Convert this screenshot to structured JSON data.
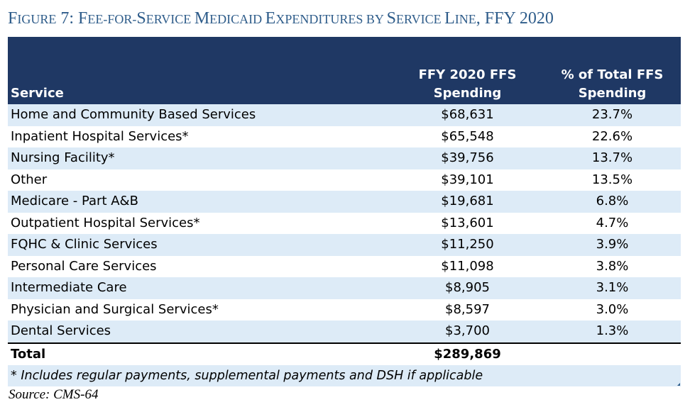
{
  "figure": {
    "title_parts": [
      {
        "text": "F",
        "style": "cap"
      },
      {
        "text": "igure",
        "style": "sc"
      },
      {
        "text": " 7: ",
        "style": "cap"
      },
      {
        "text": "F",
        "style": "cap"
      },
      {
        "text": "ee-for-",
        "style": "sc"
      },
      {
        "text": "S",
        "style": "cap"
      },
      {
        "text": "ervice ",
        "style": "sc"
      },
      {
        "text": "M",
        "style": "cap"
      },
      {
        "text": "edicaid ",
        "style": "sc"
      },
      {
        "text": "E",
        "style": "cap"
      },
      {
        "text": "xpenditures by ",
        "style": "sc"
      },
      {
        "text": "S",
        "style": "cap"
      },
      {
        "text": "ervice ",
        "style": "sc"
      },
      {
        "text": "L",
        "style": "cap"
      },
      {
        "text": "ine",
        "style": "sc"
      },
      {
        "text": ", FFY 2020",
        "style": "cap"
      }
    ],
    "title_color": "#2E5C8A"
  },
  "table": {
    "header": {
      "service": "Service",
      "spending_line1": "FFY 2020 FFS",
      "spending_line2": "Spending",
      "percent_line1": "% of Total FFS",
      "percent_line2": "Spending"
    },
    "header_bg": "#1F3864",
    "stripe_color": "#DDEBF7",
    "rows": [
      {
        "service": "Home and Community Based Services",
        "spending": "$68,631",
        "percent": "23.7%"
      },
      {
        "service": "Inpatient Hospital Services*",
        "spending": "$65,548",
        "percent": "22.6%"
      },
      {
        "service": "Nursing Facility*",
        "spending": "$39,756",
        "percent": "13.7%"
      },
      {
        "service": "Other",
        "spending": "$39,101",
        "percent": "13.5%"
      },
      {
        "service": "Medicare - Part A&B",
        "spending": "$19,681",
        "percent": "6.8%"
      },
      {
        "service": "Outpatient Hospital Services*",
        "spending": "$13,601",
        "percent": "4.7%"
      },
      {
        "service": "FQHC & Clinic Services",
        "spending": "$11,250",
        "percent": "3.9%"
      },
      {
        "service": "Personal Care Services",
        "spending": "$11,098",
        "percent": "3.8%"
      },
      {
        "service": "Intermediate Care",
        "spending": "$8,905",
        "percent": "3.1%"
      },
      {
        "service": "Physician and Surgical Services*",
        "spending": "$8,597",
        "percent": "3.0%"
      },
      {
        "service": "Dental Services",
        "spending": "$3,700",
        "percent": "1.3%"
      }
    ],
    "total": {
      "label": "Total",
      "spending": "$289,869",
      "percent": ""
    },
    "footnote": "* Includes regular payments, supplemental payments and DSH if applicable"
  },
  "source": "Source: CMS-64"
}
